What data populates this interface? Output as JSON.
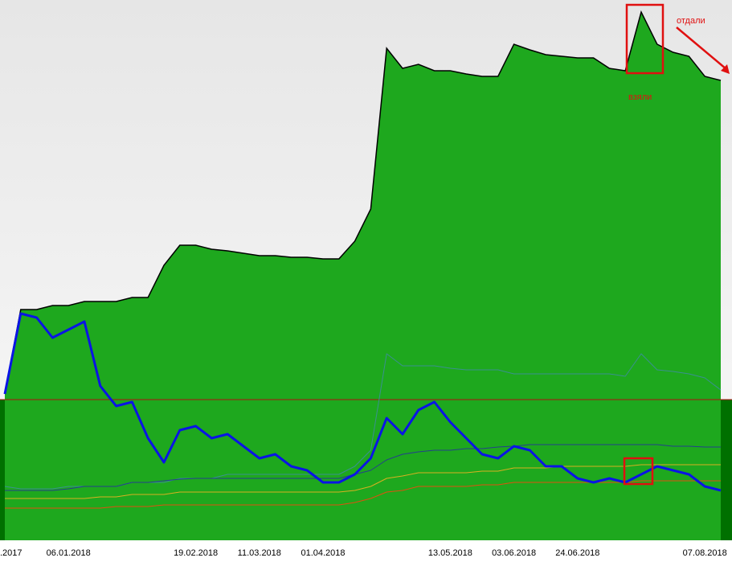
{
  "chart_data": {
    "type": "line",
    "categories": [
      ".2017",
      null,
      null,
      null,
      "06.01.2018",
      null,
      null,
      null,
      null,
      null,
      null,
      null,
      "19.02.2018",
      null,
      null,
      null,
      "11.03.2018",
      null,
      null,
      null,
      "01.04.2018",
      null,
      null,
      null,
      null,
      null,
      null,
      null,
      "13.05.2018",
      null,
      null,
      null,
      "03.06.2018",
      null,
      null,
      null,
      "24.06.2018",
      null,
      null,
      null,
      null,
      null,
      null,
      null,
      "07.08.2018",
      null
    ],
    "ylim": [
      0,
      672
    ],
    "reference_line": {
      "value": 175,
      "color": "#b01010"
    },
    "background": "#007000",
    "series": [
      {
        "color": "#000000",
        "fill": "#1ea81e",
        "values": [
          182,
          287,
          287,
          292,
          292,
          297,
          297,
          297,
          302,
          302,
          342,
          367,
          367,
          362,
          360,
          357,
          354,
          354,
          352,
          352,
          350,
          350,
          372,
          412,
          612,
          587,
          592,
          584,
          584,
          580,
          577,
          577,
          617,
          610,
          604,
          602,
          600,
          600,
          587,
          584,
          657,
          617,
          607,
          602,
          577,
          572
        ]
      },
      {
        "color": "#3a9090",
        "values": [
          67,
          64,
          64,
          64,
          67,
          67,
          67,
          67,
          72,
          72,
          72,
          77,
          77,
          77,
          82,
          82,
          82,
          82,
          82,
          82,
          82,
          82,
          92,
          112,
          232,
          217,
          217,
          217,
          214,
          212,
          212,
          212,
          207,
          207,
          207,
          207,
          207,
          207,
          207,
          204,
          232,
          212,
          210,
          207,
          202,
          187
        ]
      },
      {
        "color": "#24408c",
        "values": [
          62,
          62,
          62,
          62,
          64,
          67,
          67,
          67,
          72,
          72,
          74,
          76,
          77,
          77,
          77,
          77,
          77,
          77,
          77,
          77,
          77,
          77,
          82,
          87,
          100,
          107,
          110,
          112,
          112,
          114,
          114,
          116,
          117,
          119,
          119,
          119,
          119,
          119,
          119,
          119,
          119,
          119,
          117,
          117,
          116,
          116
        ]
      },
      {
        "color": "#d8b020",
        "values": [
          52,
          52,
          52,
          52,
          52,
          52,
          54,
          54,
          57,
          57,
          57,
          60,
          60,
          60,
          60,
          60,
          60,
          60,
          60,
          60,
          60,
          60,
          62,
          67,
          77,
          80,
          84,
          84,
          84,
          84,
          86,
          86,
          90,
          90,
          90,
          92,
          92,
          92,
          92,
          92,
          94,
          94,
          94,
          94,
          94,
          94
        ]
      },
      {
        "color": "#e05010",
        "values": [
          40,
          40,
          40,
          40,
          40,
          40,
          40,
          42,
          42,
          42,
          44,
          44,
          44,
          44,
          44,
          44,
          44,
          44,
          44,
          44,
          44,
          44,
          47,
          52,
          60,
          62,
          67,
          67,
          67,
          67,
          69,
          69,
          72,
          72,
          72,
          72,
          72,
          72,
          72,
          72,
          74,
          74,
          74,
          74,
          74,
          74
        ]
      },
      {
        "color": "#0a14e6",
        "width": 3,
        "values": [
          182,
          282,
          277,
          252,
          262,
          272,
          192,
          167,
          172,
          127,
          97,
          137,
          142,
          127,
          132,
          117,
          102,
          107,
          92,
          87,
          72,
          72,
          82,
          102,
          152,
          132,
          162,
          172,
          147,
          127,
          107,
          102,
          117,
          112,
          92,
          92,
          77,
          72,
          77,
          72,
          82,
          92,
          87,
          82,
          67,
          62
        ]
      }
    ],
    "annotations": [
      "отдали",
      "взяли"
    ]
  }
}
